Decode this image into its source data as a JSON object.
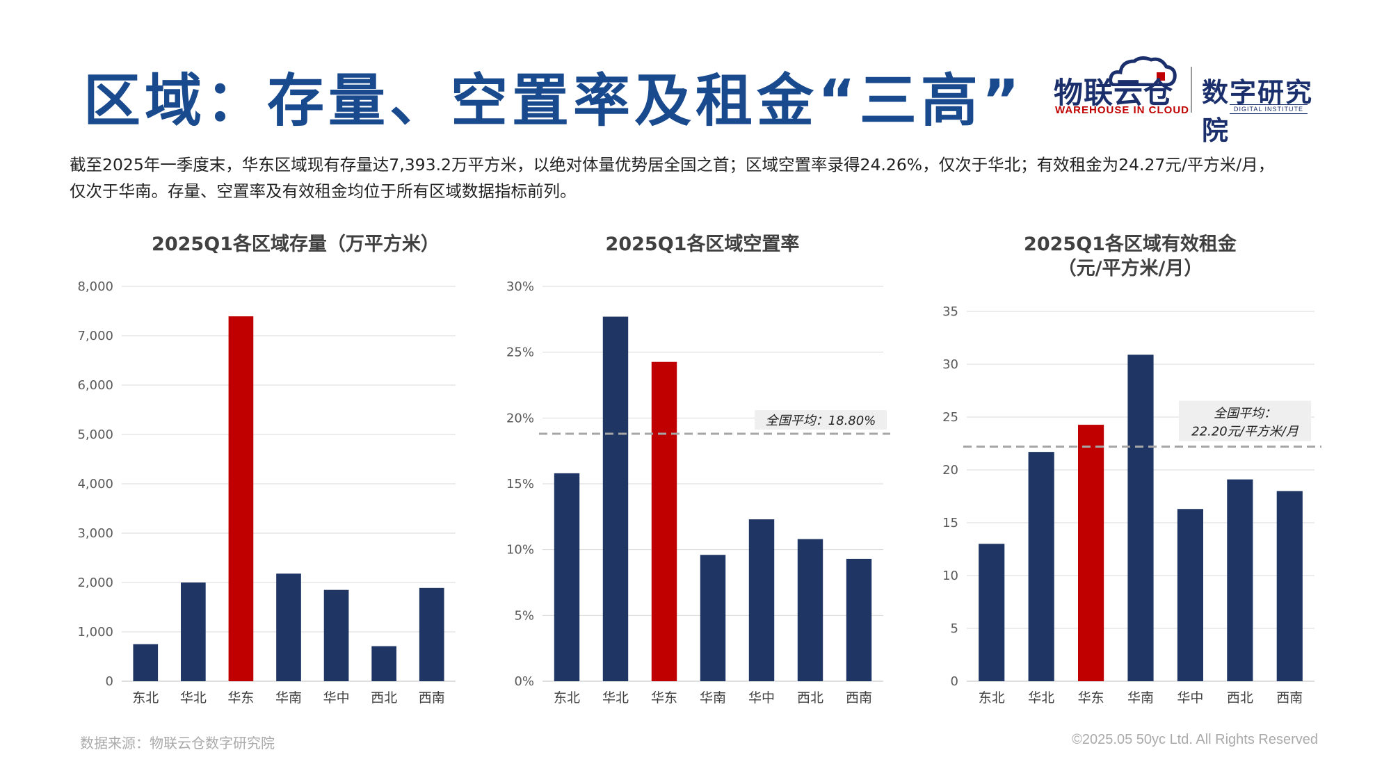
{
  "page": {
    "title": "区域：存量、空置率及租金“三高”",
    "summary_line1": "截至2025年一季度末，华东区域现有存量达7,393.2万平方米，以绝对体量优势居全国之首；区域空置率录得24.26%，仅次于华北；有效租金为24.27元/平方米/月，",
    "summary_line2": "仅次于华南。存量、空置率及有效租金均位于所有区域数据指标前列。",
    "source": "数据来源：物联云仓数字研究院",
    "copyright": "©2025.05 50yc Ltd. All Rights Reserved"
  },
  "logos": {
    "left_main": "物联云仓",
    "left_sub": "WAREHOUSE IN CLOUD",
    "right_main": "数字研究院",
    "right_sub": "DIGITAL INSTITUTE"
  },
  "colors": {
    "navy": "#1f3564",
    "highlight": "#c00000",
    "title_blue": "#1a4a8e",
    "grid": "#d9d9d9",
    "avg_line": "#a6a6a6"
  },
  "chart_data": [
    {
      "type": "bar",
      "title": "2025Q1各区域存量（万平方米）",
      "categories": [
        "东北",
        "华北",
        "华东",
        "华南",
        "华中",
        "西北",
        "西南"
      ],
      "values": [
        750,
        2000,
        7393.2,
        2180,
        1850,
        710,
        1890
      ],
      "highlight_index": 2,
      "ylim": [
        0,
        8000
      ],
      "yticks": [
        0,
        1000,
        2000,
        3000,
        4000,
        5000,
        6000,
        7000,
        8000
      ],
      "ytick_labels": [
        "0",
        "1,000",
        "2,000",
        "3,000",
        "4,000",
        "5,000",
        "6,000",
        "7,000",
        "8,000"
      ],
      "grid": true
    },
    {
      "type": "bar",
      "title": "2025Q1各区域空置率",
      "categories": [
        "东北",
        "华北",
        "华东",
        "华南",
        "华中",
        "西北",
        "西南"
      ],
      "values": [
        15.8,
        27.7,
        24.26,
        9.6,
        12.3,
        10.8,
        9.3
      ],
      "highlight_index": 2,
      "ylim": [
        0,
        30
      ],
      "yticks": [
        0,
        5,
        10,
        15,
        20,
        25,
        30
      ],
      "ytick_labels": [
        "0%",
        "5%",
        "10%",
        "15%",
        "20%",
        "25%",
        "30%"
      ],
      "grid": true,
      "average": {
        "value": 18.8,
        "label": "全国平均：18.80%"
      }
    },
    {
      "type": "bar",
      "title": "2025Q1各区域有效租金",
      "subtitle": "（元/平方米/月）",
      "categories": [
        "东北",
        "华北",
        "华东",
        "华南",
        "华中",
        "西北",
        "西南"
      ],
      "values": [
        13.0,
        21.7,
        24.27,
        30.9,
        16.3,
        19.1,
        18.0
      ],
      "highlight_index": 2,
      "ylim": [
        0,
        35
      ],
      "yticks": [
        0,
        5,
        10,
        15,
        20,
        25,
        30,
        35
      ],
      "ytick_labels": [
        "0",
        "5",
        "10",
        "15",
        "20",
        "25",
        "30",
        "35"
      ],
      "grid": true,
      "average": {
        "value": 22.2,
        "label_line1": "全国平均：",
        "label_line2": "22.20元/平方米/月"
      }
    }
  ]
}
